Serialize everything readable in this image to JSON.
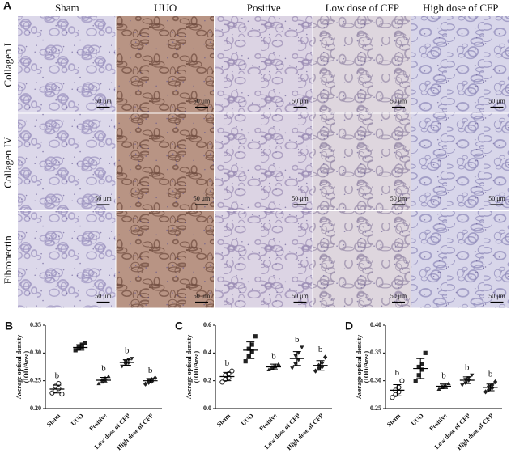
{
  "panel_a": {
    "label": "A",
    "columns": [
      "Sham",
      "UUO",
      "Positive",
      "Low dose of CFP",
      "High dose of CFP"
    ],
    "rows": [
      "Collagen I",
      "Collagen IV",
      "Fibronectin"
    ],
    "scale_bar": "50 μm"
  },
  "chart_data": [
    {
      "type": "scatter",
      "label": "B",
      "ylabel": [
        "Average optical density",
        "(IOD/Area)"
      ],
      "color": "#222",
      "categories": [
        "Sham",
        "UUO",
        "Positive",
        "Low dose of CFP",
        "High dose of CFP"
      ],
      "markers": [
        "circle",
        "square",
        "triangle",
        "triangle-down",
        "diamond"
      ],
      "groups": [
        {
          "points": [
            0.228,
            0.232,
            0.236,
            0.24,
            0.245,
            0.226
          ],
          "mean": 0.235,
          "sd": 0.007
        },
        {
          "points": [
            0.305,
            0.308,
            0.31,
            0.312,
            0.315,
            0.318
          ],
          "mean": 0.31,
          "sd": 0.005
        },
        {
          "points": [
            0.245,
            0.248,
            0.25,
            0.252,
            0.255,
            0.258
          ],
          "mean": 0.251,
          "sd": 0.005
        },
        {
          "points": [
            0.276,
            0.28,
            0.282,
            0.285,
            0.288,
            0.29
          ],
          "mean": 0.283,
          "sd": 0.005
        },
        {
          "points": [
            0.244,
            0.247,
            0.249,
            0.25,
            0.252,
            0.255
          ],
          "mean": 0.25,
          "sd": 0.004
        }
      ],
      "annotations": [
        "b",
        null,
        "b",
        "b",
        "b"
      ],
      "ylim": [
        0.2,
        0.35
      ],
      "yticks": [
        {
          "value": 0.2,
          "label": "0.20"
        },
        0.25,
        {
          "value": 0.3,
          "label": "0.30"
        },
        0.35
      ]
    },
    {
      "type": "scatter",
      "label": "C",
      "ylabel": [
        "Average optical density",
        "(IOD/Area)"
      ],
      "color": "#222",
      "categories": [
        "Sham",
        "UUO",
        "Positive",
        "Low dose of CFP",
        "High dose of CFP"
      ],
      "markers": [
        "circle",
        "square",
        "triangle",
        "triangle-down",
        "diamond"
      ],
      "groups": [
        {
          "points": [
            0.19,
            0.21,
            0.22,
            0.24,
            0.25,
            0.27
          ],
          "mean": 0.23,
          "sd": 0.03
        },
        {
          "points": [
            0.34,
            0.38,
            0.41,
            0.43,
            0.46,
            0.52
          ],
          "mean": 0.42,
          "sd": 0.06
        },
        {
          "points": [
            0.28,
            0.29,
            0.3,
            0.3,
            0.31,
            0.32
          ],
          "mean": 0.3,
          "sd": 0.02
        },
        {
          "points": [
            0.29,
            0.32,
            0.35,
            0.38,
            0.4,
            0.44
          ],
          "mean": 0.36,
          "sd": 0.05
        },
        {
          "points": [
            0.27,
            0.29,
            0.3,
            0.31,
            0.33,
            0.37
          ],
          "mean": 0.31,
          "sd": 0.035
        }
      ],
      "annotations": [
        "b",
        null,
        "b",
        "b",
        "b"
      ],
      "ylim": [
        0,
        0.6
      ],
      "yticks": [
        {
          "value": 0,
          "label": "0.0"
        },
        0.2,
        0.4,
        0.6
      ]
    },
    {
      "type": "scatter",
      "label": "D",
      "ylabel": [
        "Average optical density",
        "(IOD/Area)"
      ],
      "color": "#222",
      "categories": [
        "Sham",
        "UUO",
        "Positive",
        "Low dose of CFP",
        "High dose of CFP"
      ],
      "markers": [
        "circle",
        "square",
        "triangle",
        "triangle-down",
        "diamond"
      ],
      "groups": [
        {
          "points": [
            0.27,
            0.275,
            0.28,
            0.283,
            0.288,
            0.3
          ],
          "mean": 0.283,
          "sd": 0.01
        },
        {
          "points": [
            0.3,
            0.31,
            0.32,
            0.325,
            0.33,
            0.35
          ],
          "mean": 0.322,
          "sd": 0.018
        },
        {
          "points": [
            0.285,
            0.288,
            0.29,
            0.29,
            0.292,
            0.295
          ],
          "mean": 0.29,
          "sd": 0.004
        },
        {
          "points": [
            0.292,
            0.296,
            0.3,
            0.302,
            0.305,
            0.31
          ],
          "mean": 0.301,
          "sd": 0.006
        },
        {
          "points": [
            0.28,
            0.284,
            0.287,
            0.29,
            0.292,
            0.298
          ],
          "mean": 0.288,
          "sd": 0.006
        }
      ],
      "annotations": [
        "b",
        null,
        "b",
        "b",
        "b"
      ],
      "ylim": [
        0.25,
        0.4
      ],
      "yticks": [
        0.25,
        {
          "value": 0.3,
          "label": "0.30"
        },
        0.35,
        {
          "value": 0.4,
          "label": "0.40"
        }
      ]
    }
  ]
}
